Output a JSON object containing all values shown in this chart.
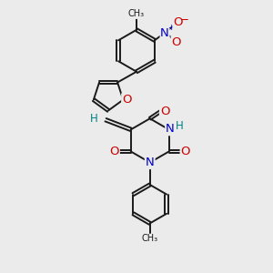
{
  "bg_color": "#ebebeb",
  "bond_color": "#1a1a1a",
  "o_color": "#cc0000",
  "n_color": "#0000cc",
  "h_color": "#008080",
  "font_size": 8.5,
  "bond_width": 1.4,
  "xlim": [
    0,
    10
  ],
  "ylim": [
    0,
    10
  ]
}
